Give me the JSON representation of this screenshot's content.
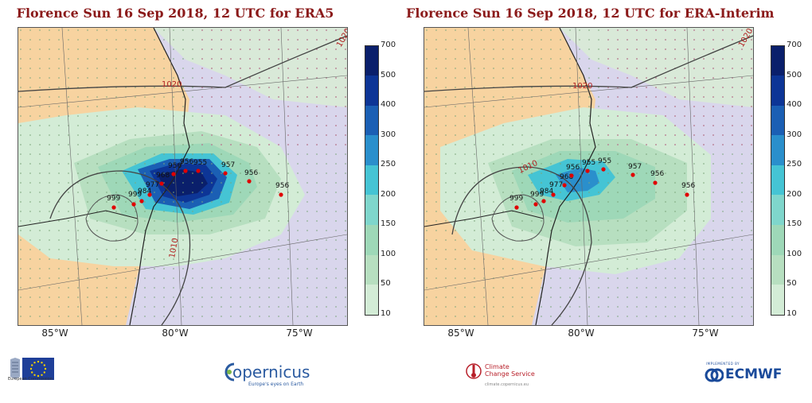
{
  "panels": [
    {
      "title": "Florence Sun 16 Sep 2018, 12 UTC for ERA5",
      "isobars": [
        "1020",
        "1020",
        "1010"
      ],
      "track": [
        "999",
        "999",
        "984",
        "977",
        "968",
        "956",
        "956",
        "955",
        "957",
        "956",
        "956"
      ]
    },
    {
      "title": "Florence Sun 16 Sep 2018, 12 UTC for ERA-Interim",
      "isobars": [
        "1020",
        "1020",
        "1010"
      ],
      "track": [
        "999",
        "999",
        "984",
        "977",
        "968",
        "956",
        "955",
        "955",
        "957",
        "956",
        "956"
      ]
    }
  ],
  "longitude_labels": [
    "85°W",
    "80°W",
    "75°W"
  ],
  "colorbar": {
    "ticks": [
      "700",
      "500",
      "400",
      "300",
      "250",
      "200",
      "150",
      "100",
      "50",
      "10"
    ],
    "colors": [
      "#0a1f6b",
      "#0d3596",
      "#1b5fb4",
      "#2a8fcc",
      "#45c4d4",
      "#7fd6cc",
      "#9ed8b8",
      "#b7dfc0",
      "#d3ecd6"
    ]
  },
  "logos": {
    "eu": "European Commission",
    "copernicus": "opernicus",
    "copernicus_tag": "Europe's eyes on Earth",
    "c3s_name_1": "Climate",
    "c3s_name_2": "Change Service",
    "c3s_url": "climate.copernicus.eu",
    "ecmwf_small": "IMPLEMENTED BY",
    "ecmwf": "ECMWF"
  },
  "colors": {
    "title": "#8b1a1a",
    "land": "#f7d3a0",
    "sea": "#d9d6ec",
    "track": "#e00000"
  }
}
